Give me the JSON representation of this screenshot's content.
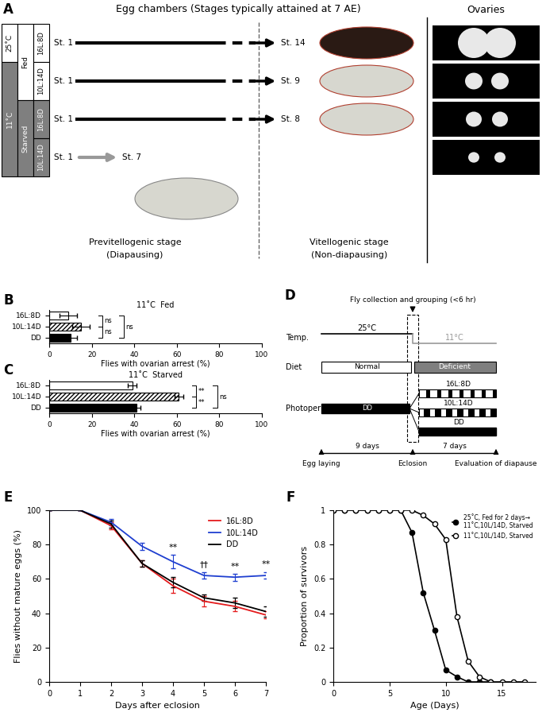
{
  "chart_data": [
    {
      "panel": "B",
      "type": "bar",
      "orientation": "horizontal",
      "title": "11˚C  Fed",
      "categories": [
        "16L:8D",
        "10L:14D",
        "DD"
      ],
      "values": [
        9,
        15,
        10
      ],
      "errors": [
        4,
        4,
        3
      ],
      "colors": [
        "#ffffff",
        "#ffffff",
        "#000000"
      ],
      "xlabel": "Flies with ovarian arrest (%)",
      "xlim": [
        0,
        100
      ],
      "xticks": [
        0,
        20,
        40,
        60,
        80,
        100
      ],
      "significance": [
        {
          "pair": [
            "16L:8D",
            "10L:14D"
          ],
          "text": "ns"
        },
        {
          "pair": [
            "10L:14D",
            "DD"
          ],
          "text": "ns"
        },
        {
          "pair": [
            "16L:8D",
            "DD"
          ],
          "text": "ns"
        }
      ]
    },
    {
      "panel": "C",
      "type": "bar",
      "orientation": "horizontal",
      "title": "11˚C  Starved",
      "categories": [
        "16L:8D",
        "10L:14D",
        "DD"
      ],
      "values": [
        39,
        61,
        41
      ],
      "errors": [
        2,
        2,
        2
      ],
      "colors": [
        "#ffffff",
        "#ffffff",
        "#000000"
      ],
      "xlabel": "Flies with ovarian arrest (%)",
      "xlim": [
        0,
        100
      ],
      "xticks": [
        0,
        20,
        40,
        60,
        80,
        100
      ],
      "significance": [
        {
          "pair": [
            "16L:8D",
            "10L:14D"
          ],
          "text": "**"
        },
        {
          "pair": [
            "10L:14D",
            "DD"
          ],
          "text": "**"
        },
        {
          "pair": [
            "16L:8D",
            "DD"
          ],
          "text": "ns"
        }
      ]
    },
    {
      "panel": "E",
      "type": "line",
      "xlabel": "Days after eclosion",
      "ylabel": "Flies without mature eggs (%)",
      "x": [
        0,
        1,
        2,
        3,
        4,
        5,
        6,
        7
      ],
      "xlim": [
        0,
        7
      ],
      "xticks": [
        0,
        1,
        2,
        3,
        4,
        5,
        6,
        7
      ],
      "ylim": [
        0,
        100
      ],
      "yticks": [
        0,
        20,
        40,
        60,
        80,
        100
      ],
      "legend": "upper right",
      "series": [
        {
          "name": "16L:8D",
          "color": "#e41a1c",
          "line_style": "solid",
          "values": [
            100,
            100,
            91,
            69,
            56,
            47,
            44,
            39
          ],
          "errors": [
            0,
            0,
            2,
            2,
            4,
            3,
            3,
            2
          ]
        },
        {
          "name": "10L:14D",
          "color": "#1f3fd0",
          "line_style": "solid",
          "values": [
            100,
            100,
            93,
            79,
            70,
            62,
            61,
            62
          ],
          "errors": [
            0,
            0,
            2,
            2,
            4,
            2,
            2,
            2
          ]
        },
        {
          "name": "DD",
          "color": "#000000",
          "line_style": "solid",
          "values": [
            100,
            100,
            92,
            69,
            58,
            49,
            46,
            41
          ],
          "errors": [
            0,
            0,
            2,
            2,
            3,
            2,
            3,
            3
          ]
        }
      ],
      "annotations": [
        {
          "x": 4,
          "text": "**"
        },
        {
          "x": 5,
          "text": "††"
        },
        {
          "x": 6,
          "text": "**"
        },
        {
          "x": 7,
          "text": "**"
        }
      ]
    },
    {
      "panel": "F",
      "type": "line",
      "xlabel": "Age (Days)",
      "ylabel": "Proportion of survivors",
      "xlim": [
        0,
        18
      ],
      "xticks": [
        0,
        5,
        10,
        15
      ],
      "ylim": [
        0,
        1
      ],
      "yticks": [
        0,
        0.2,
        0.4,
        0.6,
        0.8,
        1
      ],
      "legend": "upper right",
      "series": [
        {
          "name": "25˚C, Fed for 2 days→\n11˚C,10L/14D, Starved",
          "color": "#000000",
          "marker": "filled",
          "line_style": "solid",
          "x": [
            0,
            1,
            2,
            3,
            4,
            5,
            6,
            7,
            8,
            9,
            10,
            11,
            12,
            13,
            14
          ],
          "values": [
            1,
            1,
            1,
            1,
            1,
            1,
            1,
            0.87,
            0.52,
            0.3,
            0.07,
            0.03,
            0,
            0,
            0
          ]
        },
        {
          "name": "11˚C,10L/14D, Starved",
          "color": "#000000",
          "marker": "open",
          "line_style": "solid",
          "x": [
            0,
            1,
            2,
            3,
            4,
            5,
            6,
            7,
            8,
            9,
            10,
            11,
            12,
            13,
            14,
            15,
            16,
            17
          ],
          "values": [
            1,
            1,
            1,
            1,
            1,
            1,
            1,
            1,
            0.97,
            0.92,
            0.83,
            0.38,
            0.12,
            0.03,
            0,
            0,
            0,
            0
          ]
        }
      ]
    }
  ],
  "panel_A": {
    "panel": "A",
    "title": "Egg chambers (Stages typically attained at 7 AE)",
    "ovaries_title": "Ovaries",
    "temperature": [
      {
        "label": "25˚C",
        "rows": 1
      },
      {
        "label": "11˚C",
        "rows": 3
      }
    ],
    "diet": [
      {
        "label": "Fed",
        "rows": 2
      },
      {
        "label": "Starved",
        "rows": 2
      }
    ],
    "photoperiod": [
      "16L:8D",
      "10L:14D",
      "16L:8D",
      "10L:14D"
    ],
    "start_stage": "St. 1",
    "end_stages": [
      "St. 14",
      "St. 9",
      "St. 8",
      "St. 7"
    ],
    "stage_groups": [
      {
        "label": "Previtellogenic stage",
        "note": "(Diapausing)"
      },
      {
        "label": "Vitellogenic stage",
        "note": "(Non-diapausing)"
      }
    ]
  },
  "panel_D": {
    "panel": "D",
    "top_note": "Fly collection and grouping (<6 hr)",
    "rows": [
      {
        "label": "Temp.",
        "before": "25°C",
        "after": "11°C"
      },
      {
        "label": "Diet",
        "before": "Normal",
        "after": "Deficient"
      },
      {
        "label": "Photoperiod",
        "before": "DD",
        "after": [
          "16L:8D",
          "10L:14D",
          "DD"
        ]
      }
    ],
    "events": [
      "Egg laying",
      "Eclosion",
      "Evaluation of diapause"
    ],
    "durations": [
      "9 days",
      "7 days"
    ]
  }
}
